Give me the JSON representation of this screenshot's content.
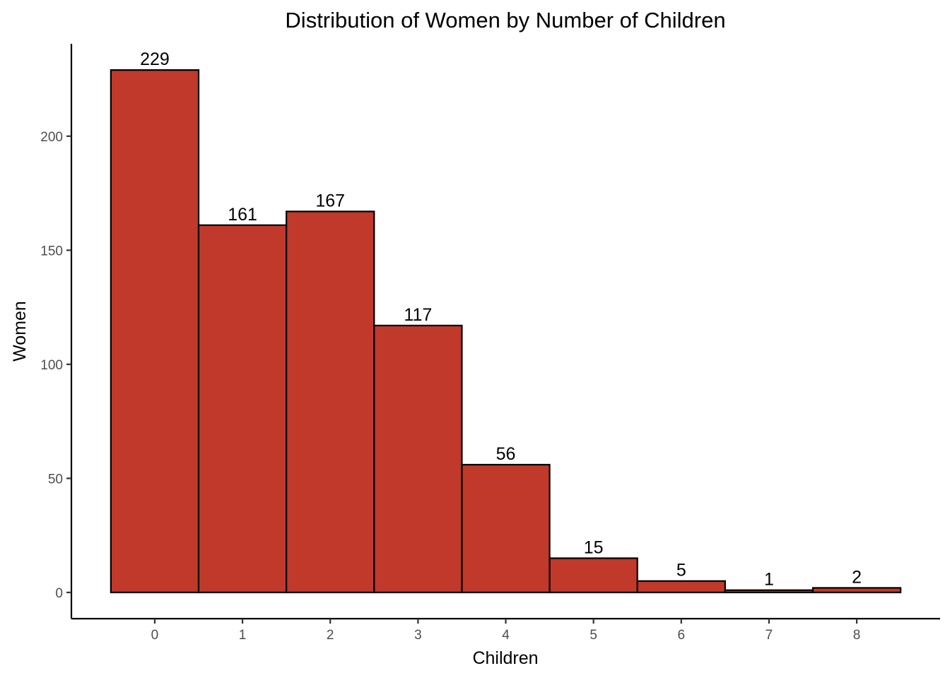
{
  "chart_data": {
    "type": "bar",
    "title": "Distribution of Women by Number of Children",
    "xlabel": "Children",
    "ylabel": "Women",
    "categories": [
      "0",
      "1",
      "2",
      "3",
      "4",
      "5",
      "6",
      "7",
      "8"
    ],
    "values": [
      229,
      161,
      167,
      117,
      56,
      15,
      5,
      1,
      2
    ],
    "y_ticks": [
      0,
      50,
      100,
      150,
      200
    ],
    "ylim": [
      -11.5,
      240.5
    ],
    "xlim": [
      -0.95,
      8.95
    ],
    "bar_fill": "#C0392B",
    "bar_stroke": "#000000",
    "grid": false,
    "legend": "none"
  }
}
